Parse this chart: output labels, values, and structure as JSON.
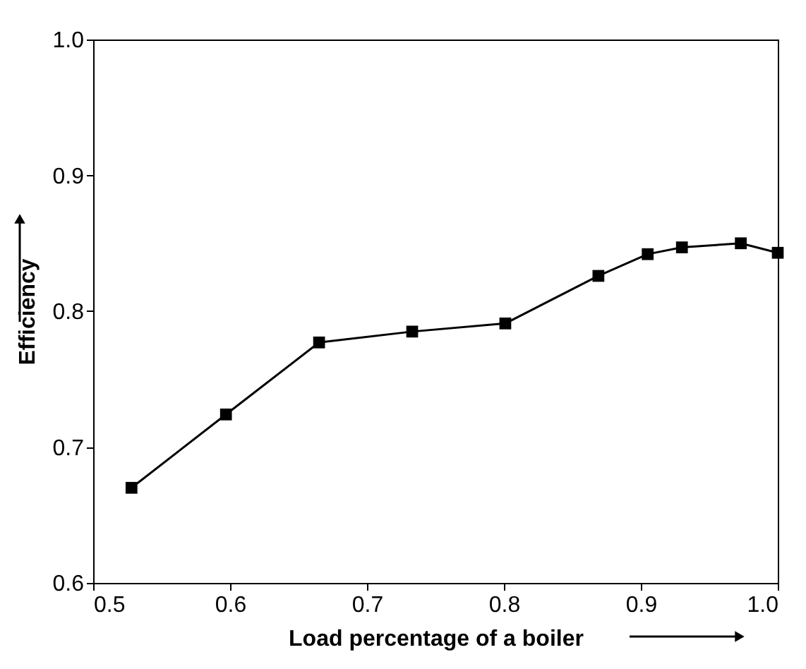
{
  "chart_data": {
    "type": "line",
    "xlabel": "Load percentage of a boiler",
    "ylabel": "Efficiency",
    "x": [
      0.528,
      0.597,
      0.665,
      0.733,
      0.801,
      0.869,
      0.905,
      0.93,
      0.973,
      1.0
    ],
    "series": [
      {
        "color": "#000000",
        "values": [
          0.67,
          0.724,
          0.777,
          0.785,
          0.791,
          0.826,
          0.842,
          0.847,
          0.85,
          0.843
        ]
      }
    ],
    "xlim": [
      0.5,
      1.0
    ],
    "xticks": [
      0.5,
      0.6,
      0.7,
      0.8,
      0.9,
      {
        "value": 1.0,
        "label": "1.0"
      }
    ],
    "ylim": [
      0.6,
      1.0
    ],
    "yticks": [
      0.6,
      0.7,
      0.8,
      0.9,
      {
        "value": 1.0,
        "label": "1.0"
      }
    ],
    "grid": false,
    "marker": "square",
    "line_style": "solid"
  }
}
